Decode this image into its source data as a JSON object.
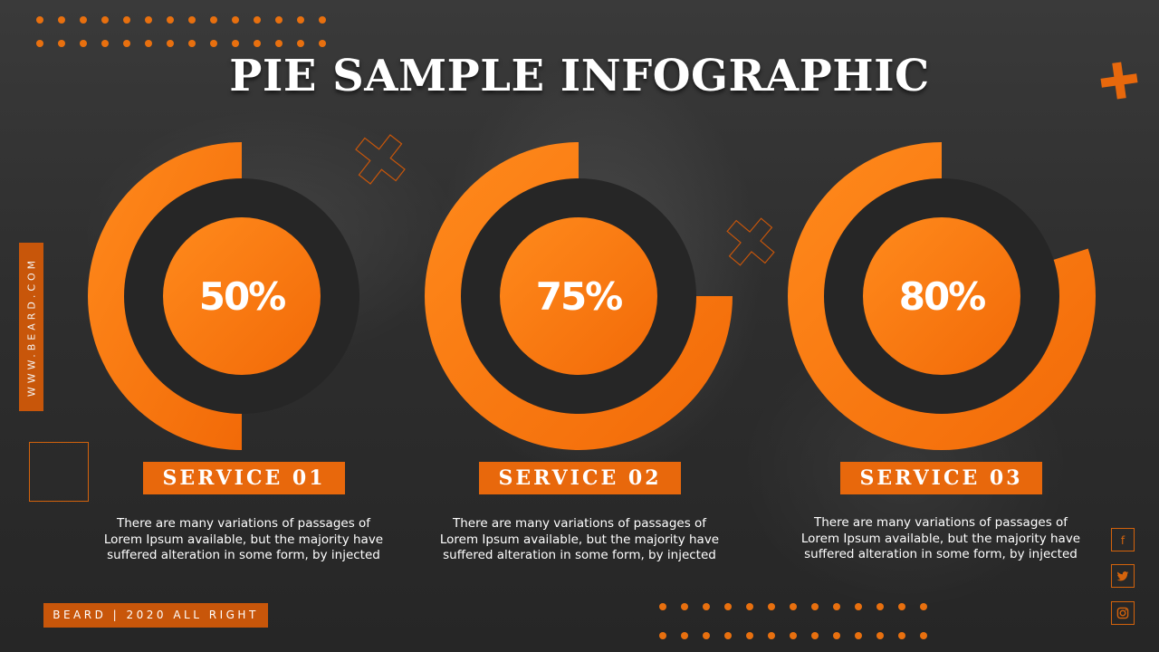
{
  "title": "PIE SAMPLE INFOGRAPHIC",
  "side_text": "WWW.BEARD.COM",
  "footer_text": "BEARD | 2020 ALL RIGHT",
  "social_icons": [
    "facebook-icon",
    "twitter-icon",
    "instagram-icon"
  ],
  "colors": {
    "accent": "#ff7a0f",
    "accent_dark": "#d9580a",
    "ring_dark": "#262626",
    "text": "#ffffff"
  },
  "chart_data": {
    "type": "pie",
    "categories": [
      "SERVICE 01",
      "SERVICE 02",
      "SERVICE 03"
    ],
    "values": [
      50,
      75,
      80
    ],
    "value_labels": [
      "50%",
      "75%",
      "80%"
    ],
    "descriptions": [
      "There are many variations of passages of Lorem Ipsum available, but the majority have suffered alteration in some form, by injected",
      "There are many variations of passages of Lorem Ipsum available, but the majority have suffered alteration in some form, by injected",
      "There are many variations of passages of Lorem Ipsum available, but the majority have suffered alteration in some form, by injected"
    ]
  }
}
